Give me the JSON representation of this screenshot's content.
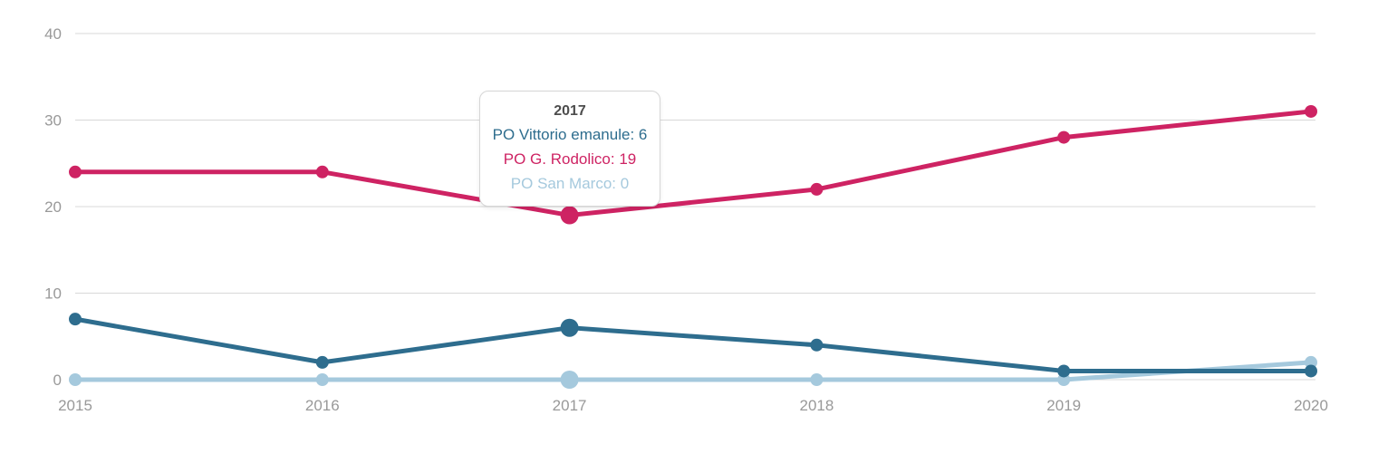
{
  "chart_data": {
    "type": "line",
    "title": "",
    "x": [
      "2015",
      "2016",
      "2017",
      "2018",
      "2019",
      "2020"
    ],
    "series": [
      {
        "name": "PO Vittorio emanule",
        "color": "#2e6d8e",
        "values": [
          7,
          2,
          6,
          4,
          1,
          1
        ]
      },
      {
        "name": "PO G. Rodolico",
        "color": "#ce2363",
        "values": [
          24,
          24,
          19,
          22,
          28,
          31
        ]
      },
      {
        "name": "PO San Marco",
        "color": "#a5c9dd",
        "values": [
          0,
          0,
          0,
          0,
          0,
          2
        ]
      }
    ],
    "ylim": [
      0,
      40
    ],
    "yticks": [
      0,
      10,
      20,
      30,
      40
    ],
    "grid": true,
    "legend_position": "none",
    "hover_index": 2
  },
  "tooltip": {
    "title": "2017",
    "items": [
      {
        "text": "PO Vittorio emanule: 6",
        "color": "#2e6d8e"
      },
      {
        "text": "PO G. Rodolico: 19",
        "color": "#ce2363"
      },
      {
        "text": "PO San Marco: 0",
        "color": "#a5c9dd"
      }
    ]
  },
  "axes": {
    "x_labels": [
      "2015",
      "2016",
      "2017",
      "2018",
      "2019",
      "2020"
    ],
    "y_labels": [
      "0",
      "10",
      "20",
      "30",
      "40"
    ],
    "label_color": "#999999",
    "gridline_color": "#d8d8d8"
  }
}
